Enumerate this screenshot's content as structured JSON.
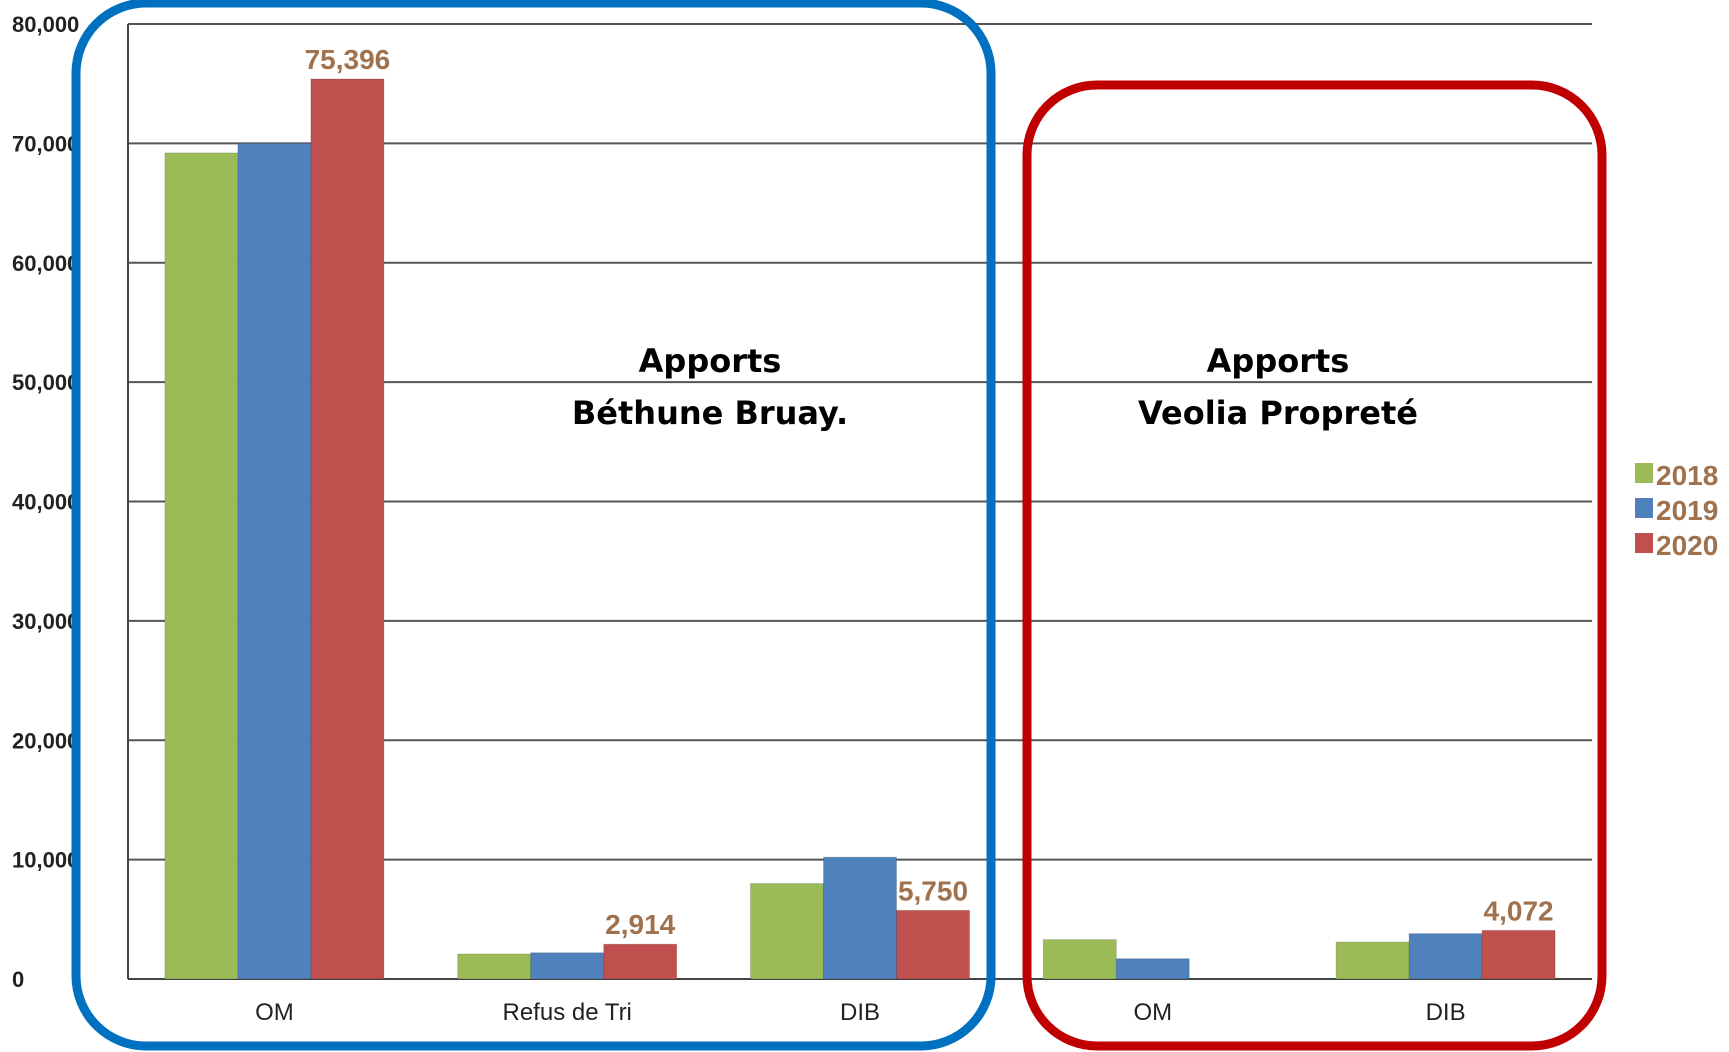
{
  "chart_data": {
    "type": "bar",
    "categories": [
      "OM",
      "Refus de Tri",
      "DIB",
      "OM",
      "DIB"
    ],
    "series": [
      {
        "name": "2018",
        "values": [
          69200,
          2100,
          8000,
          3300,
          3100
        ]
      },
      {
        "name": "2019",
        "values": [
          70000,
          2200,
          10200,
          1700,
          3800
        ]
      },
      {
        "name": "2020",
        "values": [
          75396,
          2914,
          5750,
          null,
          4072
        ]
      }
    ],
    "data_labels": [
      {
        "category_index": 0,
        "series_index": 2,
        "text": "75,396"
      },
      {
        "category_index": 1,
        "series_index": 2,
        "text": "2,914"
      },
      {
        "category_index": 2,
        "series_index": 2,
        "text": "5,750"
      },
      {
        "category_index": 4,
        "series_index": 2,
        "text": "4,072"
      }
    ],
    "y_ticks": [
      "0",
      "10,000",
      "20,000",
      "30,000",
      "40,000",
      "50,000",
      "60,000",
      "70,000",
      "80,000"
    ],
    "ylim": [
      0,
      80000
    ],
    "title": "",
    "xlabel": "",
    "ylabel": "",
    "grid": true,
    "legend_position": "right",
    "colors": {
      "2018": "#9bbb59",
      "2019": "#4f81bd",
      "2020": "#c0504d",
      "data_label": "#a0714d",
      "legend_text": "#a0714d"
    },
    "annotations": [
      {
        "lines": [
          "Apports",
          "Béthune Bruay."
        ],
        "outline_color": "#0070c0",
        "categories": [
          0,
          1,
          2
        ]
      },
      {
        "lines": [
          "Apports",
          "Veolia Propreté"
        ],
        "outline_color": "#c00000",
        "categories": [
          3,
          4
        ]
      }
    ]
  }
}
